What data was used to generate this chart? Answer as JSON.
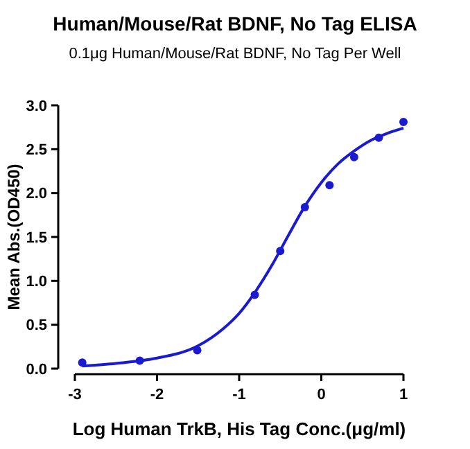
{
  "chart_data": {
    "type": "scatter",
    "title": "Human/Mouse/Rat BDNF, No Tag ELISA",
    "subtitle": "0.1μg Human/Mouse/Rat BDNF, No Tag Per Well",
    "xlabel": "Log Human TrkB, His Tag Conc.(μg/ml)",
    "ylabel": "Mean Abs.(OD450)",
    "xlim": [
      -3,
      1
    ],
    "xticks": [
      -3,
      -2,
      -1,
      0,
      1
    ],
    "ylim": [
      0,
      3
    ],
    "yticks": [
      {
        "value": 0,
        "label": "0.0"
      },
      {
        "value": 0.5,
        "label": "0.5"
      },
      {
        "value": 1,
        "label": "1.0"
      },
      {
        "value": 1.5,
        "label": "1.5"
      },
      {
        "value": 2,
        "label": "2.0"
      },
      {
        "value": 2.5,
        "label": "2.5"
      },
      {
        "value": 3,
        "label": "3.0"
      }
    ],
    "grid": false,
    "marker": "circle",
    "series": [
      {
        "color": "#1a1ad0",
        "x": [
          -2.91,
          -2.21,
          -1.51,
          -0.81,
          -0.5,
          -0.2,
          0.1,
          0.4,
          0.7,
          1.0
        ],
        "values": [
          0.07,
          0.09,
          0.21,
          0.84,
          1.34,
          1.84,
          2.09,
          2.41,
          2.63,
          2.81
        ]
      },
      {
        "type": "line",
        "color": "#1a1ad0",
        "line_style": "solid",
        "marker": "none",
        "x": [
          -2.91,
          -2.5,
          -2,
          -1.5,
          -1.2,
          -1,
          -0.8,
          -0.6,
          -0.4,
          -0.2,
          0,
          0.2,
          0.4,
          0.6,
          0.8,
          1
        ],
        "values": [
          0.03,
          0.06,
          0.12,
          0.26,
          0.45,
          0.63,
          0.88,
          1.18,
          1.52,
          1.85,
          2.12,
          2.33,
          2.48,
          2.6,
          2.68,
          2.74
        ]
      }
    ]
  }
}
